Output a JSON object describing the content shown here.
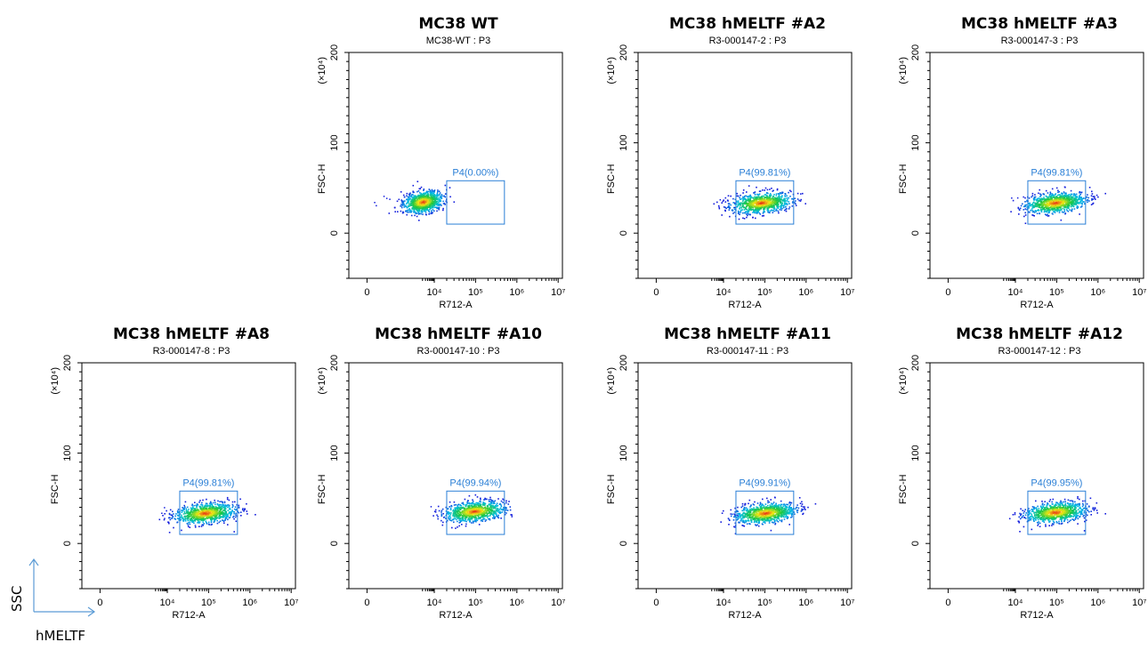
{
  "colors": {
    "gate": "#2a7fd6",
    "arrow": "#5b9bd5",
    "axis": "#000000"
  },
  "legend": {
    "y_label": "SSC",
    "x_label": "hMELTF"
  },
  "axis_text": {
    "xlabel": "R712-A",
    "ylabel": "FSC-H",
    "y_scale": "(×10⁴)"
  },
  "chart_data": [
    {
      "type": "scatter",
      "title": "MC38 WT",
      "subtitle": "MC38-WT : P3",
      "x_ticks": [
        "0",
        "10⁴",
        "10⁵",
        "10⁶",
        "10⁷"
      ],
      "y_ticks": [
        "0",
        "100",
        "200"
      ],
      "xscale": "biexponential",
      "ylim": [
        -50,
        200
      ],
      "gate": {
        "name": "P4(0.00%)",
        "x_range": [
          20000,
          500000
        ],
        "y_range": [
          10,
          58
        ]
      },
      "population": {
        "center_x": 2000,
        "center_y": 35
      }
    },
    {
      "type": "scatter",
      "title": "MC38 hMELTF #A2",
      "subtitle": "R3-000147-2 : P3",
      "x_ticks": [
        "0",
        "10⁴",
        "10⁵",
        "10⁶",
        "10⁷"
      ],
      "y_ticks": [
        "0",
        "100",
        "200"
      ],
      "xscale": "biexponential",
      "ylim": [
        -50,
        200
      ],
      "gate": {
        "name": "P4(99.81%)",
        "x_range": [
          20000,
          500000
        ],
        "y_range": [
          10,
          58
        ]
      },
      "population": {
        "center_x": 80000,
        "center_y": 34
      }
    },
    {
      "type": "scatter",
      "title": "MC38 hMELTF #A3",
      "subtitle": "R3-000147-3 : P3",
      "x_ticks": [
        "0",
        "10⁴",
        "10⁵",
        "10⁶",
        "10⁷"
      ],
      "y_ticks": [
        "0",
        "100",
        "200"
      ],
      "xscale": "biexponential",
      "ylim": [
        -50,
        200
      ],
      "gate": {
        "name": "P4(99.81%)",
        "x_range": [
          20000,
          500000
        ],
        "y_range": [
          10,
          58
        ]
      },
      "population": {
        "center_x": 90000,
        "center_y": 34
      }
    },
    {
      "type": "scatter",
      "title": "MC38 hMELTF #A8",
      "subtitle": "R3-000147-8 : P3",
      "x_ticks": [
        "0",
        "10⁴",
        "10⁵",
        "10⁶",
        "10⁷"
      ],
      "y_ticks": [
        "0",
        "100",
        "200"
      ],
      "xscale": "biexponential",
      "ylim": [
        -50,
        200
      ],
      "gate": {
        "name": "P4(99.81%)",
        "x_range": [
          20000,
          500000
        ],
        "y_range": [
          10,
          58
        ]
      },
      "population": {
        "center_x": 80000,
        "center_y": 34
      }
    },
    {
      "type": "scatter",
      "title": "MC38 hMELTF #A10",
      "subtitle": "R3-000147-10 : P3",
      "x_ticks": [
        "0",
        "10⁴",
        "10⁵",
        "10⁶",
        "10⁷"
      ],
      "y_ticks": [
        "0",
        "100",
        "200"
      ],
      "xscale": "biexponential",
      "ylim": [
        -50,
        200
      ],
      "gate": {
        "name": "P4(99.94%)",
        "x_range": [
          20000,
          500000
        ],
        "y_range": [
          10,
          58
        ]
      },
      "population": {
        "center_x": 90000,
        "center_y": 36
      }
    },
    {
      "type": "scatter",
      "title": "MC38 hMELTF #A11",
      "subtitle": "R3-000147-11 : P3",
      "x_ticks": [
        "0",
        "10⁴",
        "10⁵",
        "10⁶",
        "10⁷"
      ],
      "y_ticks": [
        "0",
        "100",
        "200"
      ],
      "xscale": "biexponential",
      "ylim": [
        -50,
        200
      ],
      "gate": {
        "name": "P4(99.91%)",
        "x_range": [
          20000,
          500000
        ],
        "y_range": [
          10,
          58
        ]
      },
      "population": {
        "center_x": 100000,
        "center_y": 34
      }
    },
    {
      "type": "scatter",
      "title": "MC38 hMELTF #A12",
      "subtitle": "R3-000147-12 : P3",
      "x_ticks": [
        "0",
        "10⁴",
        "10⁵",
        "10⁶",
        "10⁷"
      ],
      "y_ticks": [
        "0",
        "100",
        "200"
      ],
      "xscale": "biexponential",
      "ylim": [
        -50,
        200
      ],
      "gate": {
        "name": "P4(99.95%)",
        "x_range": [
          20000,
          500000
        ],
        "y_range": [
          10,
          58
        ]
      },
      "population": {
        "center_x": 90000,
        "center_y": 35
      }
    }
  ]
}
